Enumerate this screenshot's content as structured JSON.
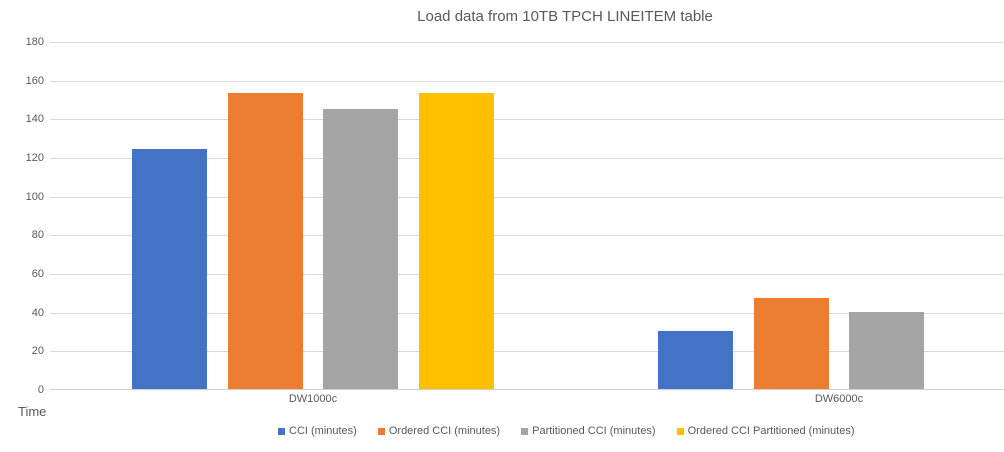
{
  "chart_data": {
    "type": "bar",
    "title": "Load data from 10TB TPCH LINEITEM table",
    "categories": [
      "DW1000c",
      "DW6000c"
    ],
    "series": [
      {
        "name": "CCI (minutes)",
        "color": "#4472C4",
        "values": [
          124,
          30
        ]
      },
      {
        "name": "Ordered CCI (minutes)",
        "color": "#ED7D31",
        "values": [
          153,
          47
        ]
      },
      {
        "name": "Partitioned CCI (minutes)",
        "color": "#A5A5A5",
        "values": [
          145,
          40
        ]
      },
      {
        "name": "Ordered CCI Partitioned (minutes)",
        "color": "#FFC000",
        "values": [
          153,
          null
        ]
      }
    ],
    "xlabel": "",
    "ylabel": "Time",
    "ylim": [
      0,
      180
    ],
    "y_ticks": [
      0,
      20,
      40,
      60,
      80,
      100,
      120,
      140,
      160,
      180
    ],
    "grid": true,
    "legend_position": "bottom",
    "colors": {
      "grid": "#d9d9d9",
      "axis_line": "#d0cece",
      "text": "#595959"
    }
  }
}
